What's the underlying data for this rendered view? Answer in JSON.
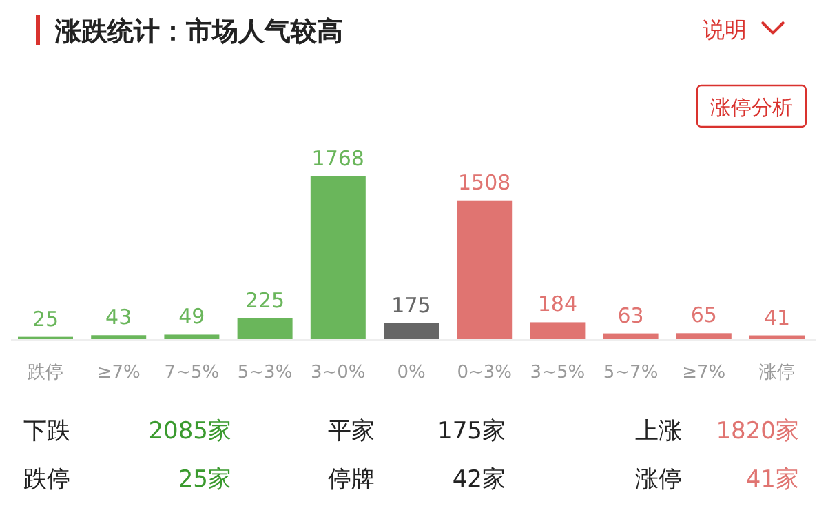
{
  "chart_data": {
    "type": "bar",
    "title": "涨跌统计：市场人气较高",
    "categories": [
      "跌停",
      "≥7%",
      "7~5%",
      "5~3%",
      "3~0%",
      "0%",
      "0~3%",
      "3~5%",
      "5~7%",
      "≥7%",
      "涨停"
    ],
    "values": [
      25,
      43,
      49,
      225,
      1768,
      175,
      1508,
      184,
      63,
      65,
      41
    ],
    "colors": [
      "#6ab65b",
      "#6ab65b",
      "#6ab65b",
      "#6ab65b",
      "#6ab65b",
      "#666666",
      "#e07471",
      "#e07471",
      "#e07471",
      "#e07471",
      "#e07471"
    ],
    "data_labels": true,
    "annotations": [
      "说明",
      "涨停分析",
      "下跌",
      "2085家",
      "平家",
      "175家",
      "上涨",
      "1820家",
      "跌停",
      "25家",
      "停牌",
      "42家",
      "涨停",
      "41家"
    ]
  }
}
